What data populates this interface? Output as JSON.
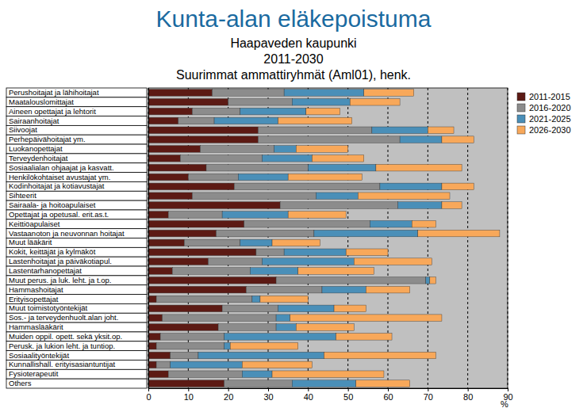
{
  "chart_data": {
    "type": "bar",
    "orientation": "horizontal",
    "stacked": true,
    "grid": true,
    "legend": "top-right",
    "title": "Kunta-alan eläkepoistuma",
    "subtitle": [
      "Haapaveden kaupunki",
      "2011-2030",
      "Suurimmat ammattiryhmät (Aml01), henk."
    ],
    "x_label": "%",
    "categories": [
      "Perushoitajat ja lähihoitajat",
      "Maatalouslomittajat",
      "Aineen opettajat ja lehtorit",
      "Sairaanhoitajat",
      "Siivoojat",
      "Perhepäivähoitajat ym.",
      "Luokanopettajat",
      "Terveydenhoitajat",
      "Sosiaalialan ohjaajat ja kasvatt.",
      "Henkilökohtaiset avustajat ym.",
      "Kodinhoitajat ja kotiavustajat",
      "Sihteerit",
      "Sairaala- ja hoitoapulaiset",
      "Opettajat ja opetusal. erit.as.t.",
      "Keittiöapulaiset",
      "Vastaanoton ja neuvonnan hoitajat",
      "Muut lääkärit",
      "Kokit, keittäjät ja kylmäköt",
      "Lastenhoitajat ja päiväkotiapul.",
      "Lastentarhanopettajat",
      "Muut perus. ja luk. leht. ja t.op.",
      "Hammashoitajat",
      "Erityisopettajat",
      "Muut toimistotyöntekijät",
      "Sos.- ja terveydenhuolt.alan joht.",
      "Hammaslääkärit",
      "Muiden oppil. opett. sekä yksit.op.",
      "Perusk. ja lukion leht. ja tuntiop.",
      "Sosiaalityöntekijät",
      "Kunnallishall. erityisasiantuntijat",
      "Fysioterapeutit",
      "Others"
    ],
    "series": [
      {
        "name": "2011-2015",
        "color": "#5c1a14",
        "values": [
          16,
          20,
          11,
          7.5,
          27.5,
          27.5,
          13,
          8,
          14.5,
          10,
          21.5,
          11,
          33,
          5,
          24,
          17,
          9,
          27,
          15,
          6,
          32,
          24.5,
          2,
          18.5,
          3.5,
          17.5,
          3,
          2,
          5.5,
          2,
          5,
          19
        ]
      },
      {
        "name": "2016-2020",
        "color": "#8c8c8c",
        "values": [
          18,
          16,
          12,
          9,
          28.5,
          35.5,
          18.5,
          20.5,
          25.5,
          12.5,
          36.5,
          31,
          29.5,
          13.5,
          31.5,
          24.5,
          14,
          7,
          13.5,
          19.5,
          37.5,
          19,
          24,
          14,
          28.5,
          14.5,
          16,
          17,
          7,
          3.5,
          18.5,
          17
        ]
      },
      {
        "name": "2021-2025",
        "color": "#4a8fb8",
        "values": [
          20,
          14.5,
          16.5,
          16,
          14,
          10.5,
          5.5,
          12.5,
          17,
          12.5,
          15.5,
          10.5,
          11,
          16.5,
          10.5,
          26,
          8,
          15.5,
          23,
          12,
          1,
          11,
          2,
          14,
          3.5,
          5,
          28,
          1.5,
          31.5,
          18,
          7.5,
          16
        ]
      },
      {
        "name": "2026-2030",
        "color": "#f8a85a",
        "values": [
          12.5,
          12.5,
          8.5,
          18.5,
          6.5,
          8,
          13,
          13,
          21.5,
          18.5,
          8,
          23,
          5,
          14.5,
          6,
          20.5,
          12,
          10.5,
          19.5,
          19,
          1.5,
          11,
          12,
          8,
          38,
          14.5,
          14,
          17,
          28,
          17.5,
          28,
          13.5
        ]
      }
    ],
    "xlim": [
      0,
      90
    ],
    "xticks": [
      0,
      10,
      20,
      30,
      40,
      50,
      60,
      70,
      80,
      90
    ]
  }
}
